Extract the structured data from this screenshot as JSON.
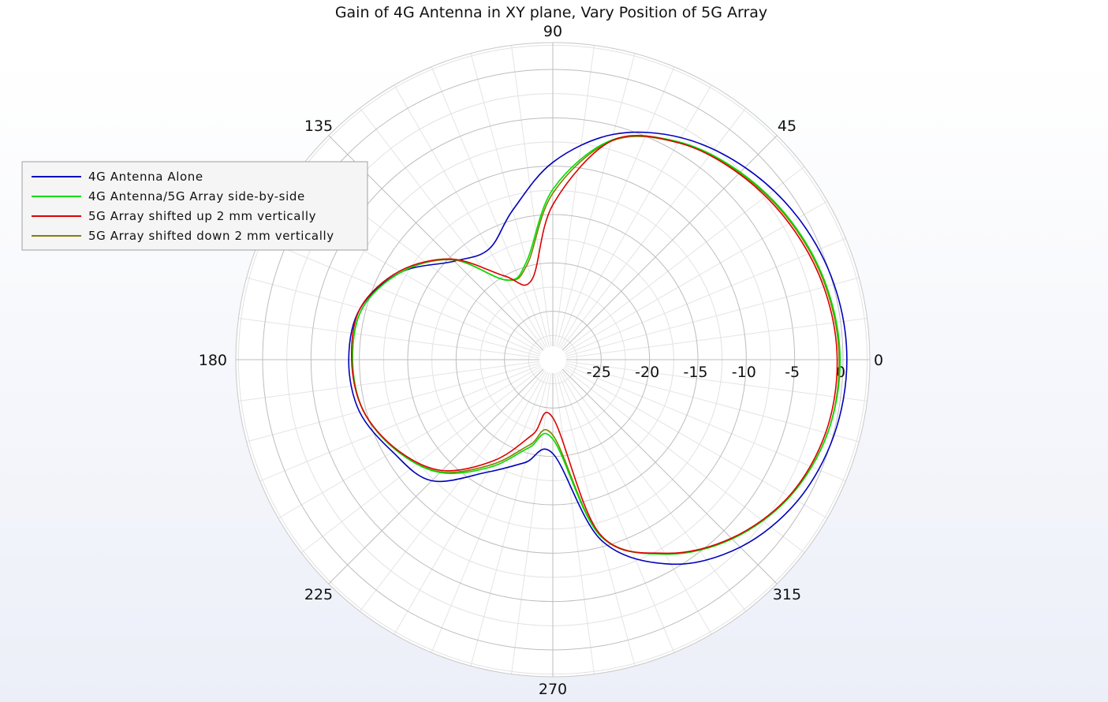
{
  "chart_data": {
    "type": "line",
    "projection": "polar",
    "title": "Gain of 4G Antenna in XY plane, Vary Position of 5G Array",
    "angle_ticks": [
      "0",
      "45",
      "90",
      "135",
      "180",
      "225",
      "270",
      "315"
    ],
    "radial_ticks": [
      "-25",
      "-20",
      "-15",
      "-10",
      "-5",
      "0"
    ],
    "radial_range": [
      -30,
      0
    ],
    "grid": true,
    "legend_position": "left",
    "angles_deg": [
      0,
      15,
      30,
      45,
      60,
      75,
      90,
      105,
      120,
      135,
      150,
      165,
      180,
      195,
      210,
      225,
      240,
      255,
      270,
      285,
      300,
      315,
      330,
      345
    ],
    "series": [
      {
        "name": "4G Antenna Alone",
        "color": "#0000bb",
        "values": [
          0.4,
          0.1,
          -0.7,
          -1.9,
          -3.5,
          -5.9,
          -9.6,
          -14.0,
          -16.8,
          -15.6,
          -11.9,
          -9.4,
          -8.9,
          -9.3,
          -10.9,
          -12.3,
          -16.6,
          -19.0,
          -20.3,
          -10.7,
          -5.6,
          -2.6,
          -0.8,
          0.1
        ]
      },
      {
        "name": "4G Antenna/5G Array side-by-side",
        "color": "#00dd00",
        "values": [
          -0.3,
          -0.7,
          -1.5,
          -2.6,
          -4.0,
          -6.5,
          -12.4,
          -19.5,
          -20.5,
          -15.3,
          -11.9,
          -9.6,
          -9.3,
          -9.7,
          -11.3,
          -13.5,
          -17.2,
          -20.6,
          -21.8,
          -11.2,
          -6.8,
          -3.8,
          -1.7,
          -0.6
        ]
      },
      {
        "name": "5G Array shifted up 2 mm vertically",
        "color": "#dd0000",
        "values": [
          -0.6,
          -1.0,
          -1.8,
          -2.8,
          -4.1,
          -6.6,
          -14.0,
          -21.5,
          -20.0,
          -15.3,
          -11.7,
          -9.4,
          -9.2,
          -9.7,
          -11.4,
          -13.8,
          -18.0,
          -22.0,
          -24.0,
          -11.4,
          -6.9,
          -3.9,
          -1.8,
          -0.8
        ]
      },
      {
        "name": "5G Array shifted down 2 mm vertically",
        "color": "#808000",
        "values": [
          -0.4,
          -0.8,
          -1.6,
          -2.7,
          -4.1,
          -6.6,
          -12.8,
          -19.8,
          -20.5,
          -15.4,
          -11.9,
          -9.6,
          -9.3,
          -9.7,
          -11.3,
          -13.6,
          -17.5,
          -20.9,
          -22.2,
          -11.3,
          -6.8,
          -3.8,
          -1.7,
          -0.6
        ]
      }
    ]
  }
}
